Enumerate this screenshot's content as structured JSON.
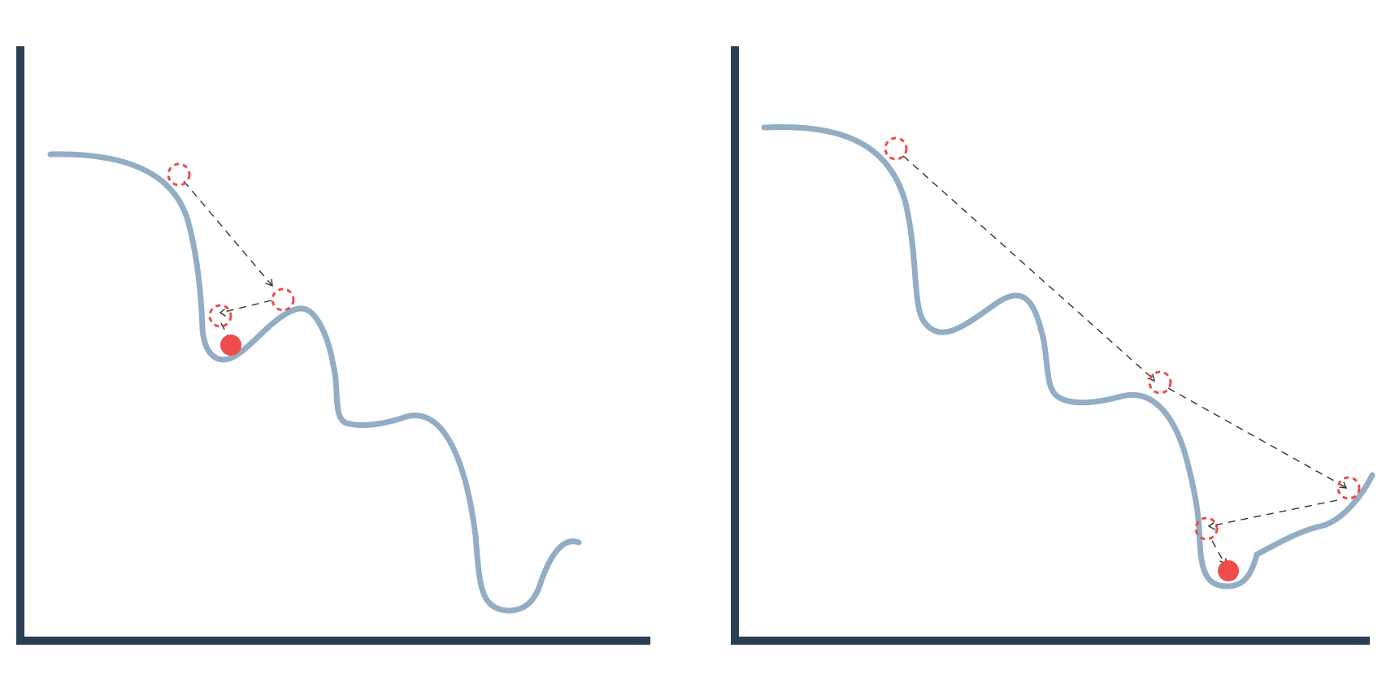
{
  "panels": [
    {
      "id": "left",
      "description_label": "",
      "ghost_positions": 3,
      "ball_color": "#ef4b4b",
      "curve_color": "#92adc4",
      "axis_color": "#2c3e55"
    },
    {
      "id": "right",
      "description_label": "",
      "ghost_positions": 4,
      "ball_color": "#ef4b4b",
      "curve_color": "#92adc4",
      "axis_color": "#2c3e55"
    }
  ]
}
